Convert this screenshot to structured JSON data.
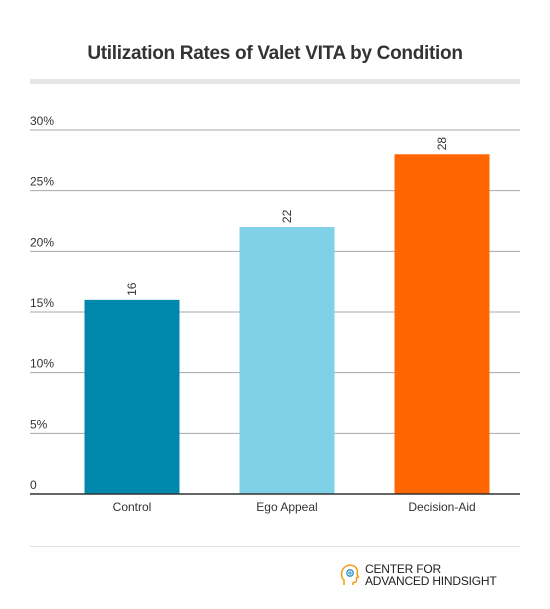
{
  "chart_data": {
    "type": "bar",
    "title": "Utilization Rates of Valet VITA by Condition",
    "categories": [
      "Control",
      "Ego Appeal",
      "Decision-Aid"
    ],
    "values": [
      16,
      22,
      28
    ],
    "value_labels": [
      "16",
      "22",
      "28"
    ],
    "colors": [
      "#0088ad",
      "#7fd1e8",
      "#ff6600"
    ],
    "xlabel": "",
    "ylabel": "",
    "ylim": [
      0,
      30
    ],
    "yticks": [
      0,
      5,
      10,
      15,
      20,
      25,
      30
    ],
    "ytick_labels": [
      "0",
      "5%",
      "10%",
      "15%",
      "20%",
      "25%",
      "30%"
    ],
    "grid": true,
    "legend": "none"
  },
  "brand": {
    "line1": "CENTER FOR",
    "line2": "ADVANCED HINDSIGHT",
    "icon": "head-silhouette-icon"
  }
}
